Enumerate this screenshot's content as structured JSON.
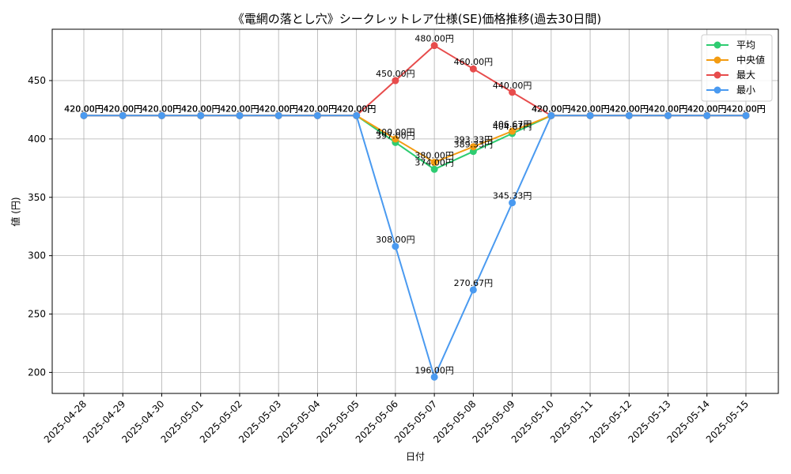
{
  "chart_data": {
    "type": "line",
    "title": "《電網の落とし穴》シークレットレア仕様(SE)価格推移(過去30日間)",
    "xlabel": "日付",
    "ylabel": "値 (円)",
    "ylim": [
      182,
      494
    ],
    "yticks": [
      200,
      250,
      300,
      350,
      400,
      450
    ],
    "grid": true,
    "legend_position": "top-right",
    "x": [
      "2025-04-28",
      "2025-04-29",
      "2025-04-30",
      "2025-05-01",
      "2025-05-02",
      "2025-05-03",
      "2025-05-04",
      "2025-05-05",
      "2025-05-06",
      "2025-05-07",
      "2025-05-08",
      "2025-05-09",
      "2025-05-10",
      "2025-05-11",
      "2025-05-12",
      "2025-05-13",
      "2025-05-14",
      "2025-05-15"
    ],
    "series": [
      {
        "name": "平均",
        "color": "#2ecc71",
        "values": [
          420,
          420,
          420,
          420,
          420,
          420,
          420,
          420,
          397,
          374,
          389.33,
          404.67,
          420,
          420,
          420,
          420,
          420,
          420
        ],
        "labels": [
          "420.00円",
          "420.00円",
          "420.00円",
          "420.00円",
          "420.00円",
          "420.00円",
          "420.00円",
          "420.00円",
          "397.00円",
          "374.00円",
          "389.33円",
          "404.67円",
          "420.00円",
          "420.00円",
          "420.00円",
          "420.00円",
          "420.00円",
          "420.00円"
        ]
      },
      {
        "name": "中央値",
        "color": "#f39c12",
        "values": [
          420,
          420,
          420,
          420,
          420,
          420,
          420,
          420,
          400,
          380,
          393.33,
          406.67,
          420,
          420,
          420,
          420,
          420,
          420
        ],
        "labels": [
          "420.00円",
          "420.00円",
          "420.00円",
          "420.00円",
          "420.00円",
          "420.00円",
          "420.00円",
          "420.00円",
          "400.00円",
          "380.00円",
          "393.33円",
          "406.67円",
          "420.00円",
          "420.00円",
          "420.00円",
          "420.00円",
          "420.00円",
          "420.00円"
        ]
      },
      {
        "name": "最大",
        "color": "#e74c4c",
        "values": [
          420,
          420,
          420,
          420,
          420,
          420,
          420,
          420,
          450,
          480,
          460,
          440,
          420,
          420,
          420,
          420,
          420,
          420
        ],
        "labels": [
          "420.00円",
          "420.00円",
          "420.00円",
          "420.00円",
          "420.00円",
          "420.00円",
          "420.00円",
          "420.00円",
          "450.00円",
          "480.00円",
          "460.00円",
          "440.00円",
          "420.00円",
          "420.00円",
          "420.00円",
          "420.00円",
          "420.00円",
          "420.00円"
        ]
      },
      {
        "name": "最小",
        "color": "#4a9af0",
        "values": [
          420,
          420,
          420,
          420,
          420,
          420,
          420,
          420,
          308,
          196,
          270.67,
          345.33,
          420,
          420,
          420,
          420,
          420,
          420
        ],
        "labels": [
          "420.00円",
          "420.00円",
          "420.00円",
          "420.00円",
          "420.00円",
          "420.00円",
          "420.00円",
          "420.00円",
          "308.00円",
          "196.00円",
          "270.67円",
          "345.33円",
          "420.00円",
          "420.00円",
          "420.00円",
          "420.00円",
          "420.00円",
          "420.00円"
        ]
      }
    ]
  }
}
